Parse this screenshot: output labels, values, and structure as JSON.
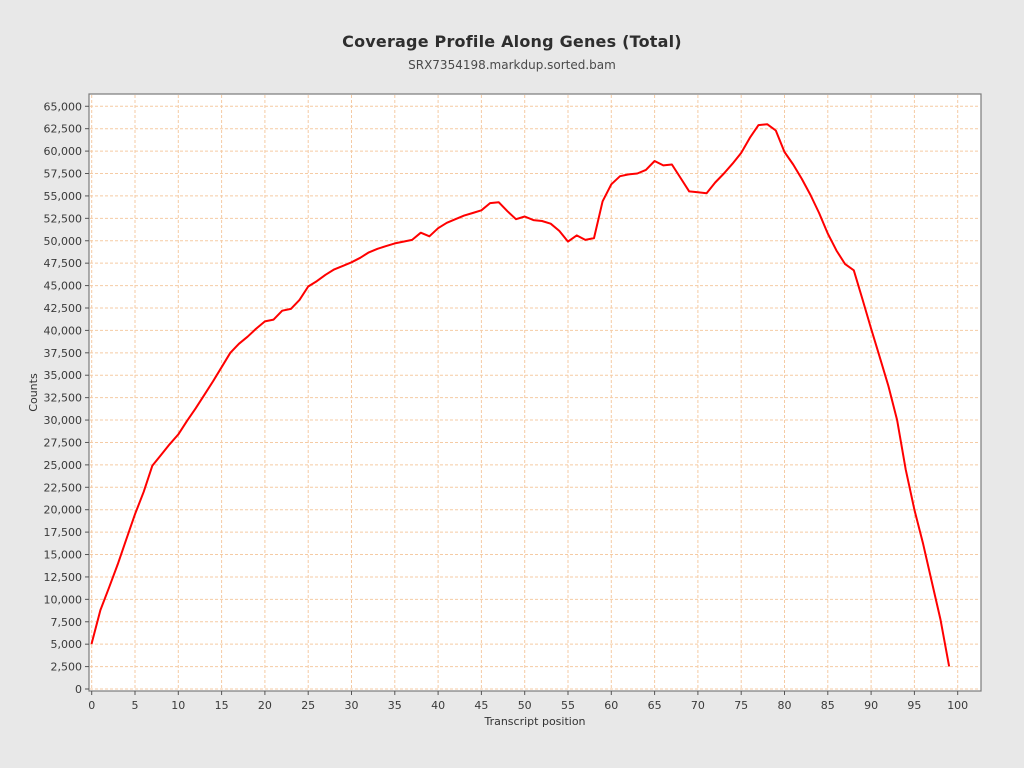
{
  "header": {
    "title": "Coverage Profile Along Genes (Total)",
    "subtitle": "SRX7354198.markdup.sorted.bam"
  },
  "chart_data": {
    "type": "line",
    "title": "Coverage Profile Along Genes (Total)",
    "subtitle": "SRX7354198.markdup.sorted.bam",
    "xlabel": "Transcript position",
    "ylabel": "Counts",
    "xlim": [
      0,
      100
    ],
    "ylim": [
      0,
      65000
    ],
    "grid": true,
    "grid_color": "#f5cba4",
    "line_color": "#ff0000",
    "plot_bg_color": "#ffffff",
    "figure_bg_color": "#e8e8e8",
    "x_ticks": [
      0,
      5,
      10,
      15,
      20,
      25,
      30,
      35,
      40,
      45,
      50,
      55,
      60,
      65,
      70,
      75,
      80,
      85,
      90,
      95,
      100
    ],
    "y_ticks": [
      0,
      2500,
      5000,
      7500,
      10000,
      12500,
      15000,
      17500,
      20000,
      22500,
      25000,
      27500,
      30000,
      32500,
      35000,
      37500,
      40000,
      42500,
      45000,
      47500,
      50000,
      52500,
      55000,
      57500,
      60000,
      62500,
      65000
    ],
    "series": [
      {
        "name": "coverage",
        "x_start": 0,
        "x_step": 1,
        "values": [
          5100,
          8800,
          11300,
          13900,
          16700,
          19500,
          22000,
          24900,
          26100,
          27300,
          28400,
          29900,
          31300,
          32800,
          34300,
          35900,
          37500,
          38500,
          39300,
          40200,
          41000,
          41200,
          42200,
          42400,
          43400,
          44900,
          45500,
          46200,
          46800,
          47200,
          47600,
          48100,
          48700,
          49100,
          49400,
          49700,
          49900,
          50100,
          50900,
          50500,
          51400,
          52000,
          52400,
          52800,
          53100,
          53400,
          54200,
          54300,
          53300,
          52400,
          52700,
          52300,
          52200,
          51900,
          51100,
          49900,
          50600,
          50100,
          50300,
          54400,
          56300,
          57200,
          57400,
          57500,
          57900,
          58900,
          58400,
          58500,
          57000,
          55500,
          55400,
          55300,
          56500,
          57500,
          58600,
          59800,
          61500,
          62900,
          63000,
          62300,
          59900,
          58500,
          56900,
          55100,
          53100,
          50800,
          48900,
          47400,
          46700,
          43500,
          40200,
          37000,
          33800,
          30000,
          24500,
          20000,
          16200,
          12000,
          7800,
          2600
        ]
      }
    ]
  }
}
